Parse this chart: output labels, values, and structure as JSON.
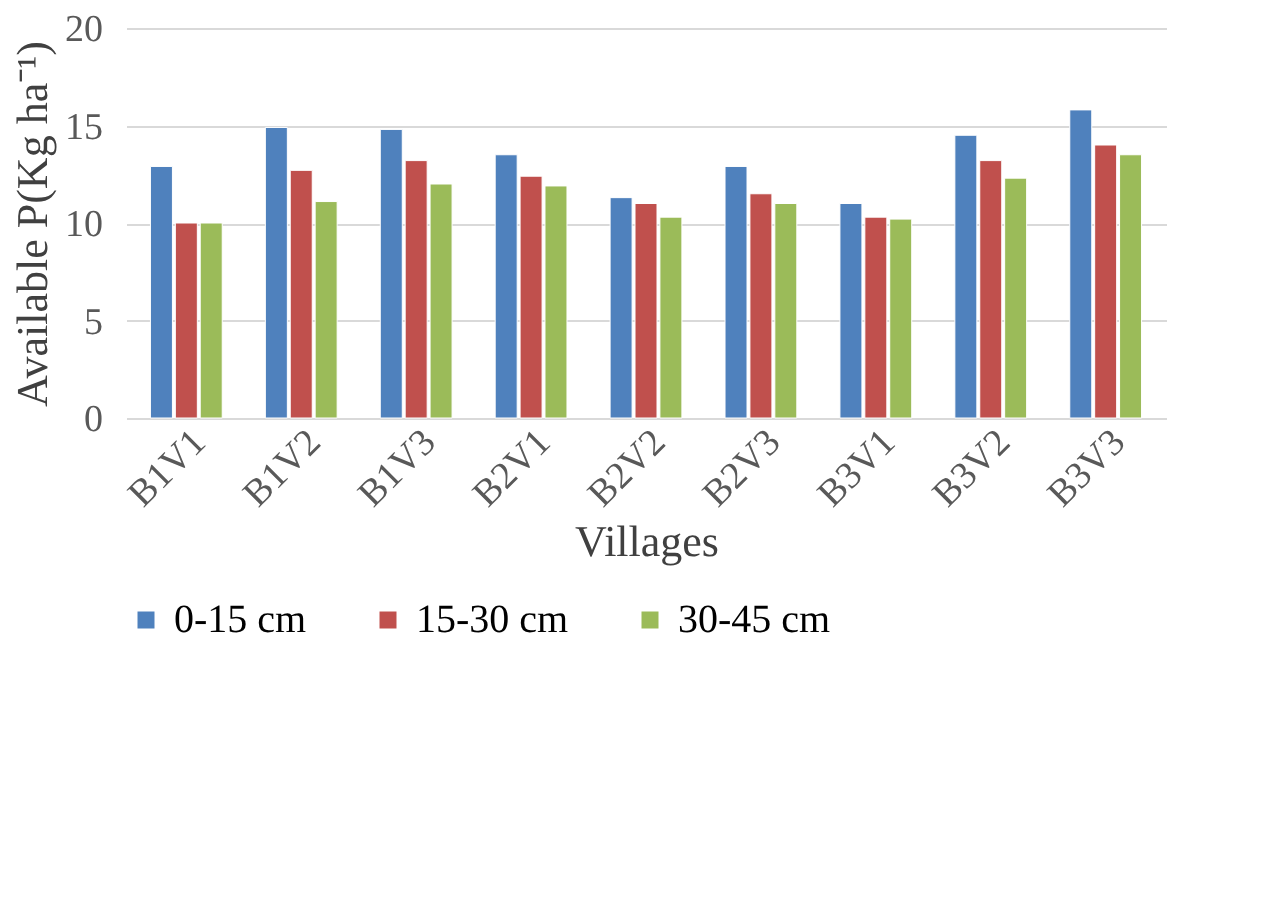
{
  "chart_data": {
    "type": "bar",
    "xlabel": "Villages",
    "ylabel": "Available P(Kg ha⁻¹)",
    "categories": [
      "B1V1",
      "B1V2",
      "B1V3",
      "B2V1",
      "B2V2",
      "B2V3",
      "B3V1",
      "B3V2",
      "B3V3"
    ],
    "series": [
      {
        "name": "0-15 cm",
        "color": "#4f81bd",
        "values": [
          12.9,
          14.9,
          14.8,
          13.5,
          11.3,
          12.9,
          11.0,
          14.5,
          15.8
        ]
      },
      {
        "name": "15-30 cm",
        "color": "#c0504d",
        "values": [
          10.0,
          12.7,
          13.2,
          12.4,
          11.0,
          11.5,
          10.3,
          13.2,
          14.0
        ]
      },
      {
        "name": "30-45 cm",
        "color": "#9bbb59",
        "values": [
          10.0,
          11.1,
          12.0,
          11.9,
          10.3,
          11.0,
          10.2,
          12.3,
          13.5
        ]
      }
    ],
    "ylim": [
      0,
      20
    ],
    "yticks": [
      0,
      5,
      10,
      15,
      20
    ],
    "grid": "y",
    "legend": "bottom"
  }
}
